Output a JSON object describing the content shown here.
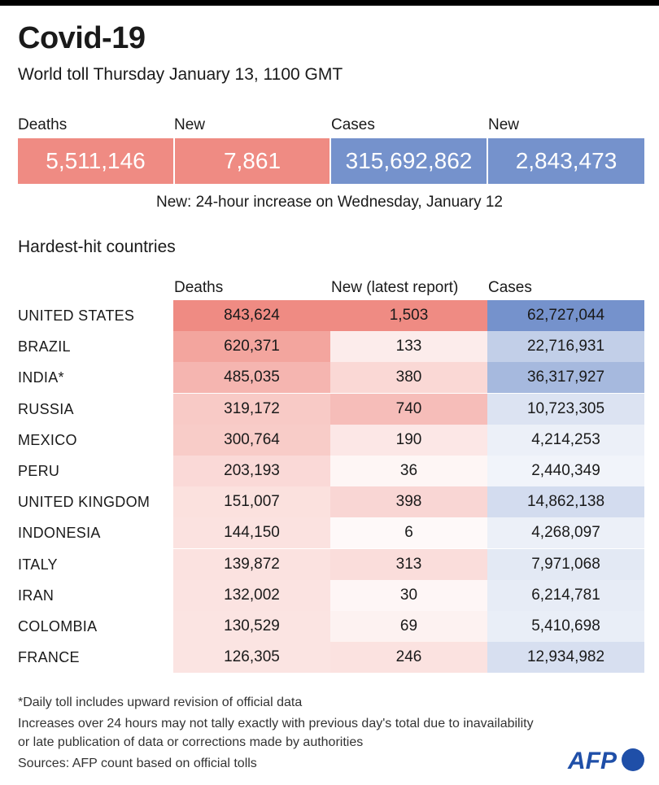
{
  "header": {
    "title": "Covid-19",
    "subtitle": "World toll Thursday January 13, 1100 GMT"
  },
  "kpis": [
    {
      "label": "Deaths",
      "value": "5,511,146",
      "color": "#ef8b83"
    },
    {
      "label": "New",
      "value": "7,861",
      "color": "#ef8b83"
    },
    {
      "label": "Cases",
      "value": "315,692,862",
      "color": "#7592cc"
    },
    {
      "label": "New",
      "value": "2,843,473",
      "color": "#7592cc"
    }
  ],
  "kpi_note": "New: 24-hour increase on Wednesday, January 12",
  "section_title": "Hardest-hit countries",
  "colors": {
    "deaths_max": "#ef8b83",
    "new_max": "#ef8b83",
    "cases_max": "#7592cc",
    "text": "#1a1a1a"
  },
  "chart_data": {
    "type": "table",
    "columns": [
      "Deaths",
      "New (latest report)",
      "Cases"
    ],
    "rows": [
      {
        "country": "UNITED STATES",
        "deaths": "843,624",
        "new": "1,503",
        "cases": "62,727,044"
      },
      {
        "country": "BRAZIL",
        "deaths": "620,371",
        "new": "133",
        "cases": "22,716,931"
      },
      {
        "country": "INDIA*",
        "deaths": "485,035",
        "new": "380",
        "cases": "36,317,927"
      },
      {
        "country": "RUSSIA",
        "deaths": "319,172",
        "new": "740",
        "cases": "10,723,305"
      },
      {
        "country": "MEXICO",
        "deaths": "300,764",
        "new": "190",
        "cases": "4,214,253"
      },
      {
        "country": "PERU",
        "deaths": "203,193",
        "new": "36",
        "cases": "2,440,349"
      },
      {
        "country": "UNITED KINGDOM",
        "deaths": "151,007",
        "new": "398",
        "cases": "14,862,138"
      },
      {
        "country": "INDONESIA",
        "deaths": "144,150",
        "new": "6",
        "cases": "4,268,097"
      },
      {
        "country": "ITALY",
        "deaths": "139,872",
        "new": "313",
        "cases": "7,971,068"
      },
      {
        "country": "IRAN",
        "deaths": "132,002",
        "new": "30",
        "cases": "6,214,781"
      },
      {
        "country": "COLOMBIA",
        "deaths": "130,529",
        "new": "69",
        "cases": "5,410,698"
      },
      {
        "country": "FRANCE",
        "deaths": "126,305",
        "new": "246",
        "cases": "12,934,982"
      }
    ]
  },
  "footnotes": {
    "line1": "*Daily toll includes upward revision of official data",
    "line2": "Increases over 24 hours may not tally exactly with previous day's total due to inavailability",
    "line3": "or late publication of data or corrections made by authorities",
    "line4": "Sources: AFP count based on official tolls"
  },
  "logo": {
    "text": "AFP",
    "icon": "afp-logo-icon"
  }
}
